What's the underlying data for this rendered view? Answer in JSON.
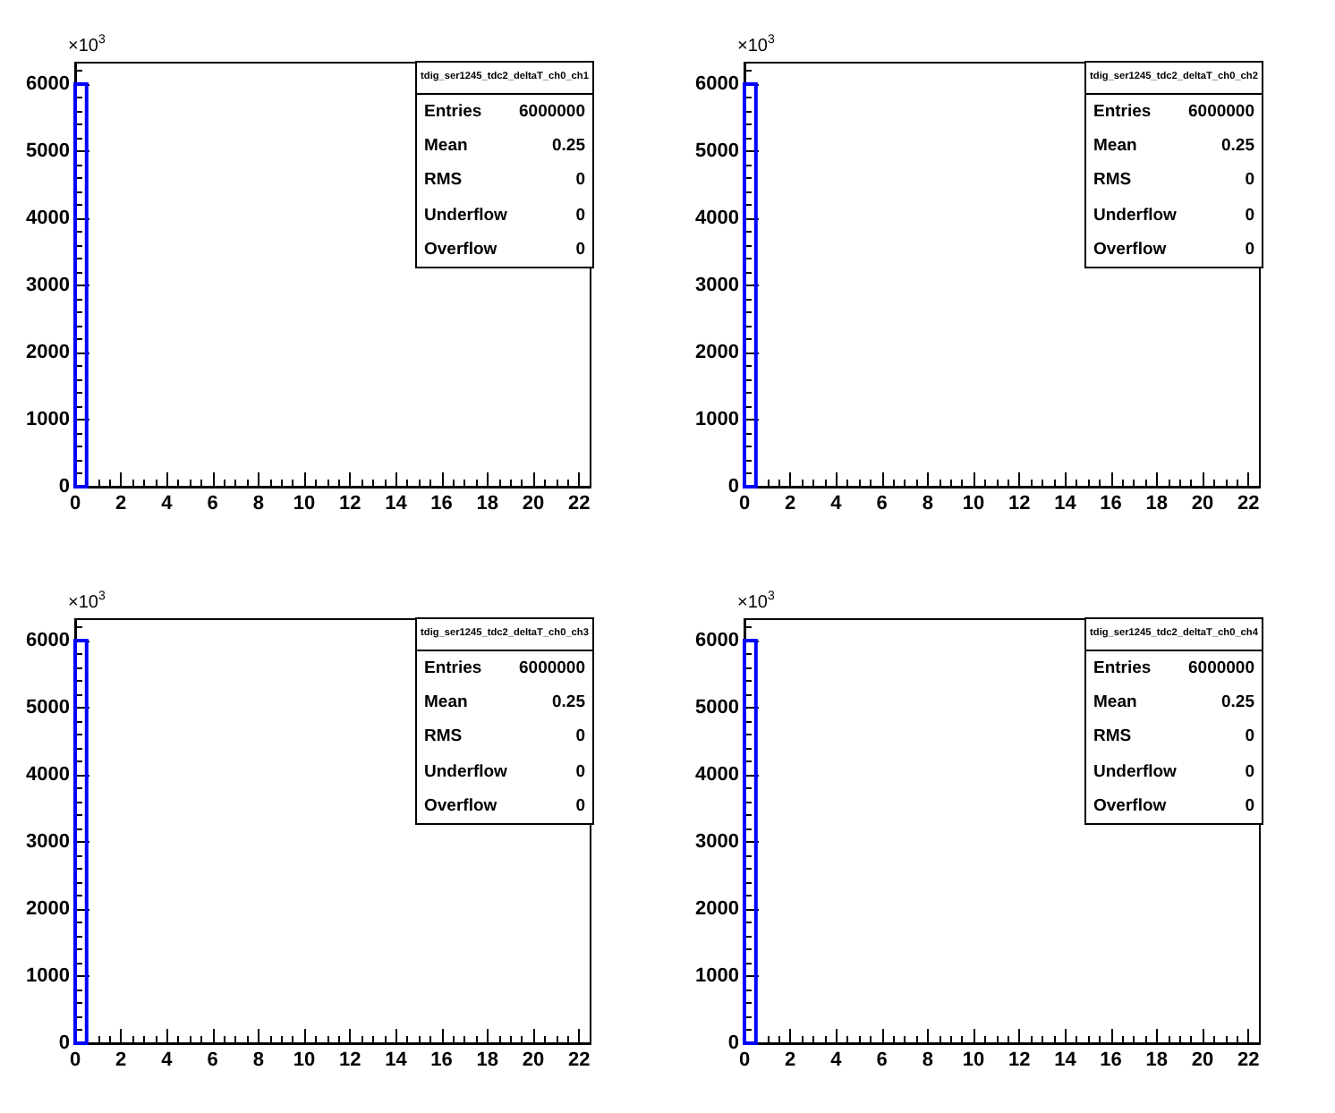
{
  "chart_data": [
    {
      "type": "histogram",
      "title": "tdig_ser1245_tdc2_deltaT_ch0_ch1",
      "ylabel": "×10$^{3}$",
      "bins": [
        0,
        0.5
      ],
      "values": [
        6000
      ],
      "color": "#0000ff",
      "xlim": [
        0,
        22.5
      ],
      "ylim": [
        0,
        6320
      ],
      "xticks": [
        0,
        2,
        4,
        6,
        8,
        10,
        12,
        14,
        16,
        18,
        20,
        22
      ],
      "yticks": [
        0,
        1000,
        2000,
        3000,
        4000,
        5000,
        6000
      ],
      "grid": false,
      "annotations": [
        "Entries",
        "6000000",
        "Mean",
        "0.25",
        "RMS",
        "0",
        "Underflow",
        "0",
        "Overflow",
        "0"
      ]
    },
    {
      "type": "histogram",
      "title": "tdig_ser1245_tdc2_deltaT_ch0_ch2",
      "ylabel": "×10$^{3}$",
      "bins": [
        0,
        0.5
      ],
      "values": [
        6000
      ],
      "color": "#0000ff",
      "xlim": [
        0,
        22.5
      ],
      "ylim": [
        0,
        6320
      ],
      "xticks": [
        0,
        2,
        4,
        6,
        8,
        10,
        12,
        14,
        16,
        18,
        20,
        22
      ],
      "yticks": [
        0,
        1000,
        2000,
        3000,
        4000,
        5000,
        6000
      ],
      "grid": false,
      "annotations": [
        "Entries",
        "6000000",
        "Mean",
        "0.25",
        "RMS",
        "0",
        "Underflow",
        "0",
        "Overflow",
        "0"
      ]
    },
    {
      "type": "histogram",
      "title": "tdig_ser1245_tdc2_deltaT_ch0_ch3",
      "ylabel": "×10$^{3}$",
      "bins": [
        0,
        0.5
      ],
      "values": [
        6000
      ],
      "color": "#0000ff",
      "xlim": [
        0,
        22.5
      ],
      "ylim": [
        0,
        6320
      ],
      "xticks": [
        0,
        2,
        4,
        6,
        8,
        10,
        12,
        14,
        16,
        18,
        20,
        22
      ],
      "yticks": [
        0,
        1000,
        2000,
        3000,
        4000,
        5000,
        6000
      ],
      "grid": false,
      "annotations": [
        "Entries",
        "6000000",
        "Mean",
        "0.25",
        "RMS",
        "0",
        "Underflow",
        "0",
        "Overflow",
        "0"
      ]
    },
    {
      "type": "histogram",
      "title": "tdig_ser1245_tdc2_deltaT_ch0_ch4",
      "ylabel": "×10$^{3}$",
      "bins": [
        0,
        0.5
      ],
      "values": [
        6000
      ],
      "color": "#0000ff",
      "xlim": [
        0,
        22.5
      ],
      "ylim": [
        0,
        6320
      ],
      "xticks": [
        0,
        2,
        4,
        6,
        8,
        10,
        12,
        14,
        16,
        18,
        20,
        22
      ],
      "yticks": [
        0,
        1000,
        2000,
        3000,
        4000,
        5000,
        6000
      ],
      "grid": false,
      "annotations": [
        "Entries",
        "6000000",
        "Mean",
        "0.25",
        "RMS",
        "0",
        "Underflow",
        "0",
        "Overflow",
        "0"
      ]
    }
  ]
}
